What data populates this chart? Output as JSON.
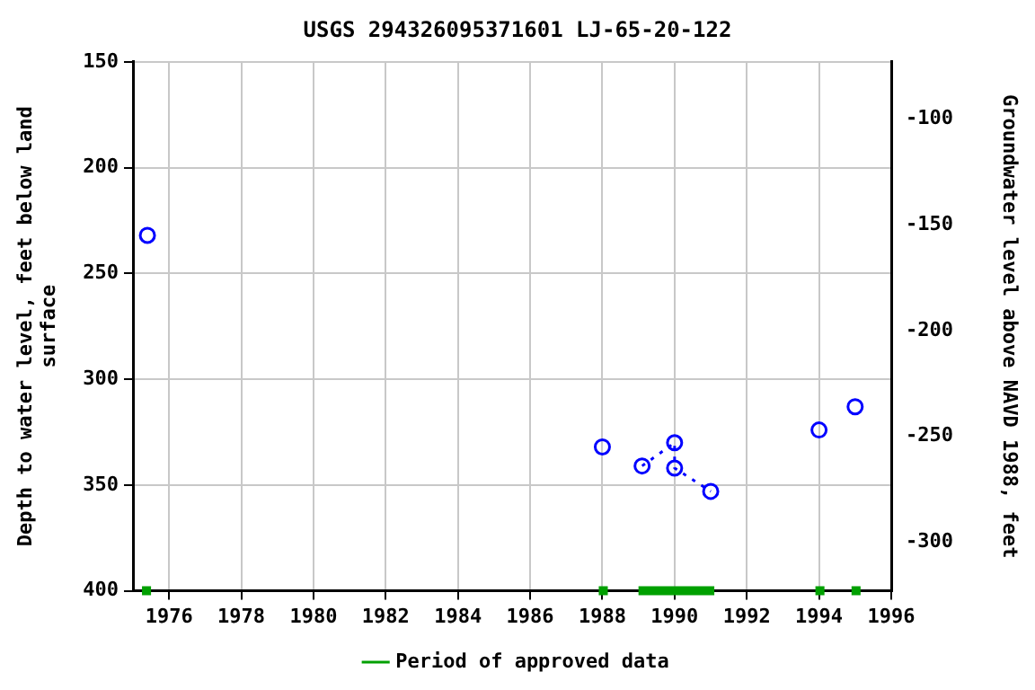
{
  "chart_data": {
    "type": "scatter",
    "title": "USGS 294326095371601 LJ-65-20-122",
    "ylabel": "Depth to water level, feet below land surface",
    "y2label": "Groundwater level above NAVD 1988, feet",
    "xlim": [
      1975,
      1996
    ],
    "xticks": [
      1976,
      1978,
      1980,
      1982,
      1984,
      1986,
      1988,
      1990,
      1992,
      1994,
      1996
    ],
    "ylim": [
      400,
      150
    ],
    "yticks": [
      150,
      200,
      250,
      300,
      350,
      400
    ],
    "y2lim": [
      -323,
      -73
    ],
    "y2ticks": [
      -100,
      -150,
      -200,
      -250,
      -300
    ],
    "grid": true,
    "legend": "bottom",
    "series": [
      {
        "color": "#0000ff",
        "marker": "circle",
        "x": [
          1975.4,
          1988.0,
          1989.1,
          1990.0,
          1990.0,
          1991.0,
          1994.0,
          1995.0
        ],
        "values": [
          232,
          332,
          341,
          330,
          342,
          353,
          324,
          313
        ]
      },
      {
        "type": "line",
        "color": "#0000ff",
        "marker": "none",
        "line_style": "dotted",
        "x": [
          1989.1,
          1990.0,
          1990.0,
          1991.0
        ],
        "values": [
          341,
          330,
          342,
          353
        ]
      },
      {
        "type": "line",
        "name": "Period of approved data",
        "color": "#00a000",
        "marker": "none",
        "line_style": "solid",
        "x": [
          1975.25,
          1975.5,
          1981,
          1987.9,
          1988.15,
          1988.5,
          1989.0,
          1991.1,
          1992,
          1993.9,
          1994.15,
          1994.5,
          1994.9,
          1995.15
        ],
        "values": [
          400,
          400,
          null,
          400,
          400,
          null,
          400,
          400,
          null,
          400,
          400,
          null,
          400,
          400
        ]
      }
    ]
  }
}
